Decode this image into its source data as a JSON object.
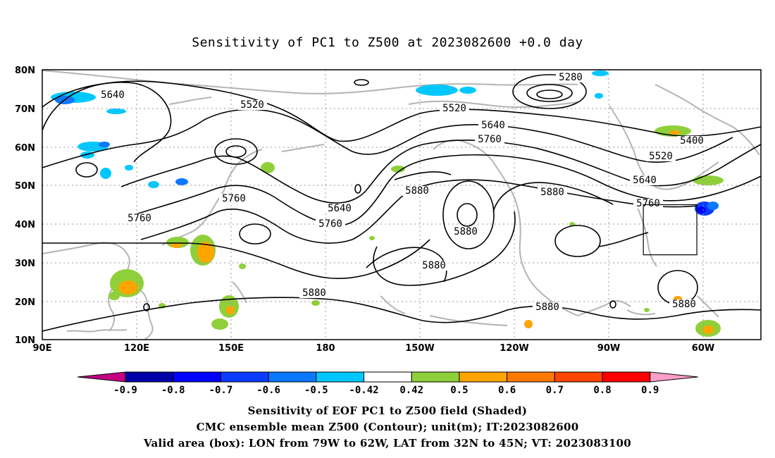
{
  "title": "Sensitivity of PC1 to Z500 at 2023082600 +0.0 day",
  "map": {
    "lat_labels": [
      "80N",
      "70N",
      "60N",
      "50N",
      "40N",
      "30N",
      "20N",
      "10N"
    ],
    "lon_labels": [
      "90E",
      "120E",
      "150E",
      "180",
      "150W",
      "120W",
      "90W",
      "60W"
    ],
    "contour_labels": [
      "5640",
      "5520",
      "5280",
      "5520",
      "5640",
      "5760",
      "5400",
      "5520",
      "5640",
      "5760",
      "5880",
      "5880",
      "5640",
      "5760",
      "5760",
      "5880",
      "5760",
      "5880",
      "5880",
      "5880",
      "5880"
    ],
    "box": {
      "lon_from": "79W",
      "lon_to": "62W",
      "lat_from": "32N",
      "lat_to": "45N"
    }
  },
  "colorbar": {
    "labels": [
      "-0.9",
      "-0.8",
      "-0.7",
      "-0.6",
      "-0.5",
      "-0.42",
      "0.42",
      "0.5",
      "0.6",
      "0.7",
      "0.8",
      "0.9"
    ],
    "colors": [
      "#c40080",
      "#0000a8",
      "#0000ff",
      "#0a3cff",
      "#0a78ff",
      "#00c8ff",
      "#ffffff",
      "#8fd03a",
      "#ffa500",
      "#ff7800",
      "#ff4600",
      "#ff0000",
      "#ff9ec8"
    ]
  },
  "captions": {
    "line1": "Sensitivity of EOF PC1 to Z500 field (Shaded)",
    "line2": "CMC ensemble mean Z500 (Contour); unit(m); IT:2023082600",
    "line3": "Valid area (box): LON from 79W to 62W, LAT from 32N to 45N; VT: 2023083100"
  }
}
